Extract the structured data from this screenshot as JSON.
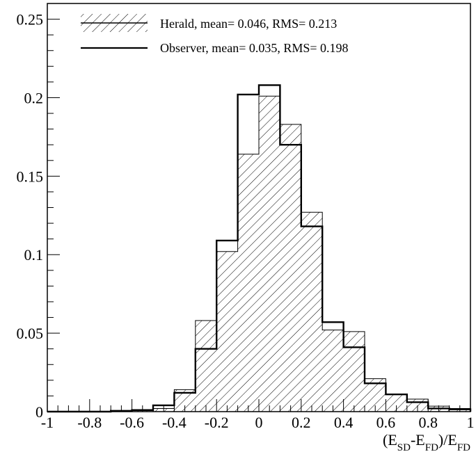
{
  "chart_data": {
    "type": "histogram",
    "bin_edges": [
      -1.0,
      -0.9,
      -0.8,
      -0.7,
      -0.6,
      -0.5,
      -0.4,
      -0.3,
      -0.2,
      -0.1,
      0.0,
      0.1,
      0.2,
      0.3,
      0.4,
      0.5,
      0.6,
      0.7,
      0.8,
      0.9,
      1.0
    ],
    "series": [
      {
        "name": "Herald, mean= 0.046, RMS= 0.213",
        "style": "hatched",
        "values": [
          0.0,
          0.0,
          0.0,
          0.0005,
          0.001,
          0.002,
          0.014,
          0.058,
          0.102,
          0.164,
          0.201,
          0.183,
          0.127,
          0.052,
          0.051,
          0.021,
          0.011,
          0.008,
          0.0035,
          0.002
        ]
      },
      {
        "name": "Observer, mean= 0.035, RMS= 0.198",
        "style": "line",
        "values": [
          0.0,
          0.0,
          0.0,
          0.0005,
          0.001,
          0.004,
          0.012,
          0.04,
          0.109,
          0.202,
          0.208,
          0.17,
          0.118,
          0.057,
          0.041,
          0.018,
          0.011,
          0.006,
          0.002,
          0.0015
        ]
      }
    ],
    "x_ticks": [
      "-1",
      "-0.8",
      "-0.6",
      "-0.4",
      "-0.2",
      "0",
      "0.2",
      "0.4",
      "0.6",
      "0.8",
      "1"
    ],
    "y_ticks": [
      "0",
      "0.05",
      "0.1",
      "0.15",
      "0.2",
      "0.25"
    ],
    "xlim": [
      -1,
      1
    ],
    "ylim": [
      0,
      0.26
    ],
    "xlabel": {
      "open": "(E",
      "sub1": "SD",
      "mid": "-E",
      "sub2": "FD",
      "slash": ")/E",
      "sub3": "FD"
    },
    "legend_placement": "top-left",
    "grid": false,
    "colors": {
      "line": "#000000",
      "hatch": "#000000",
      "background": "#ffffff"
    }
  }
}
